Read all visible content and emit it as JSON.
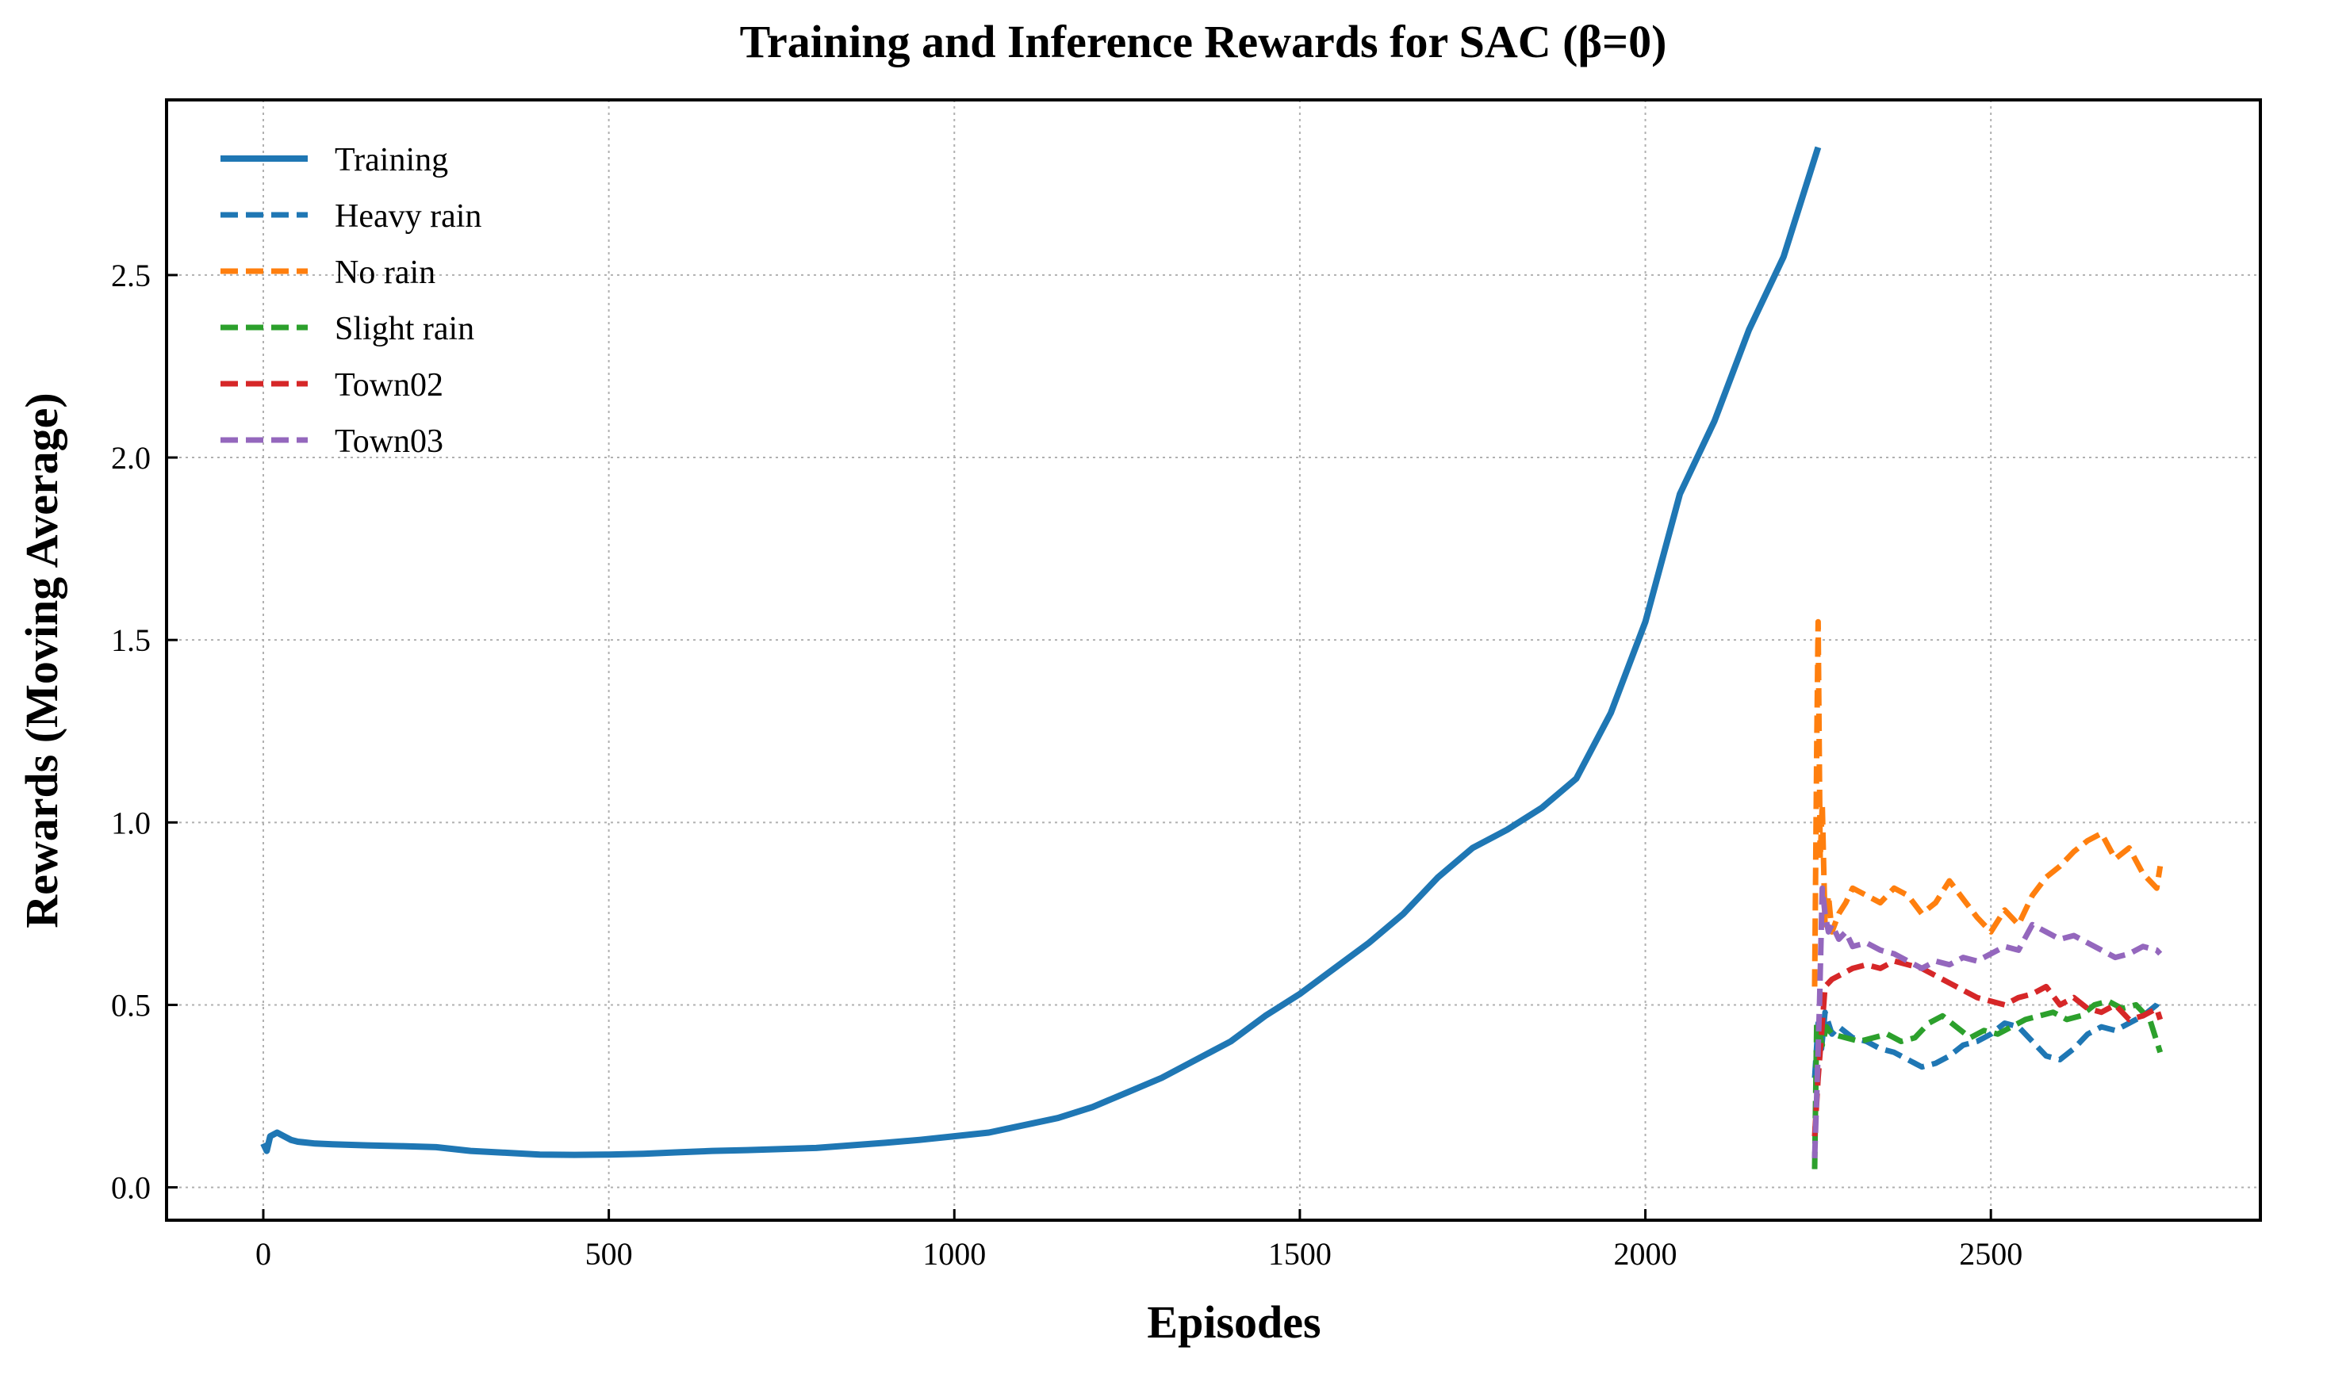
{
  "chart_data": {
    "type": "line",
    "title": "Training and Inference Rewards for SAC (β=0)",
    "xlabel": "Episodes",
    "ylabel": "Rewards (Moving Average)",
    "xlim": [
      -140,
      2890
    ],
    "ylim": [
      -0.09,
      2.98
    ],
    "xticks": [
      0,
      500,
      1000,
      1500,
      2000,
      2500
    ],
    "xtick_labels": [
      "0",
      "500",
      "1000",
      "1500",
      "2000",
      "2500"
    ],
    "yticks": [
      0.0,
      0.5,
      1.0,
      1.5,
      2.0,
      2.5
    ],
    "ytick_labels": [
      "0.0",
      "0.5",
      "1.0",
      "1.5",
      "2.0",
      "2.5"
    ],
    "grid": true,
    "legend_position": "top-left",
    "series": [
      {
        "name": "Training",
        "color": "#1f77b4",
        "dash": "solid",
        "x": [
          0,
          5,
          10,
          20,
          30,
          40,
          50,
          75,
          100,
          150,
          200,
          250,
          300,
          350,
          400,
          450,
          500,
          550,
          600,
          650,
          700,
          750,
          800,
          850,
          900,
          950,
          1000,
          1050,
          1100,
          1150,
          1200,
          1250,
          1300,
          1350,
          1400,
          1450,
          1500,
          1550,
          1600,
          1650,
          1700,
          1750,
          1800,
          1850,
          1900,
          1950,
          2000,
          2050,
          2100,
          2150,
          2200,
          2225,
          2250
        ],
        "y": [
          0.12,
          0.1,
          0.14,
          0.15,
          0.14,
          0.13,
          0.125,
          0.12,
          0.118,
          0.115,
          0.113,
          0.11,
          0.1,
          0.095,
          0.09,
          0.089,
          0.09,
          0.092,
          0.096,
          0.1,
          0.102,
          0.105,
          0.108,
          0.115,
          0.122,
          0.13,
          0.14,
          0.15,
          0.17,
          0.19,
          0.22,
          0.26,
          0.3,
          0.35,
          0.4,
          0.47,
          0.53,
          0.6,
          0.67,
          0.75,
          0.85,
          0.93,
          0.98,
          1.04,
          1.12,
          1.3,
          1.55,
          1.9,
          2.1,
          2.35,
          2.55,
          2.7,
          2.85
        ]
      },
      {
        "name": "Heavy rain",
        "color": "#1f77b4",
        "dash": "dashed",
        "x": [
          2245,
          2250,
          2255,
          2260,
          2270,
          2280,
          2300,
          2320,
          2340,
          2360,
          2380,
          2400,
          2420,
          2440,
          2460,
          2480,
          2500,
          2520,
          2540,
          2560,
          2580,
          2600,
          2620,
          2640,
          2660,
          2680,
          2700,
          2720,
          2740,
          2745
        ],
        "y": [
          0.3,
          0.45,
          0.38,
          0.48,
          0.42,
          0.44,
          0.41,
          0.4,
          0.38,
          0.37,
          0.35,
          0.33,
          0.34,
          0.36,
          0.39,
          0.4,
          0.42,
          0.45,
          0.44,
          0.4,
          0.36,
          0.35,
          0.38,
          0.42,
          0.44,
          0.43,
          0.45,
          0.47,
          0.5,
          0.52
        ]
      },
      {
        "name": "No rain",
        "color": "#ff7f0e",
        "dash": "dashed",
        "x": [
          2245,
          2248,
          2250,
          2253,
          2256,
          2260,
          2265,
          2270,
          2280,
          2290,
          2300,
          2320,
          2340,
          2360,
          2380,
          2400,
          2420,
          2440,
          2460,
          2480,
          2500,
          2520,
          2540,
          2560,
          2580,
          2600,
          2620,
          2640,
          2660,
          2680,
          2700,
          2720,
          2740,
          2745
        ],
        "y": [
          0.55,
          1.2,
          1.55,
          0.9,
          1.05,
          0.72,
          0.8,
          0.7,
          0.75,
          0.78,
          0.82,
          0.8,
          0.78,
          0.82,
          0.8,
          0.75,
          0.78,
          0.84,
          0.79,
          0.74,
          0.7,
          0.76,
          0.72,
          0.8,
          0.85,
          0.88,
          0.92,
          0.95,
          0.97,
          0.9,
          0.93,
          0.86,
          0.82,
          0.88
        ]
      },
      {
        "name": "Slight rain",
        "color": "#2ca02c",
        "dash": "dashed",
        "x": [
          2245,
          2248,
          2252,
          2256,
          2262,
          2270,
          2290,
          2310,
          2330,
          2350,
          2370,
          2390,
          2410,
          2430,
          2450,
          2470,
          2490,
          2510,
          2530,
          2550,
          2570,
          2590,
          2610,
          2630,
          2650,
          2670,
          2690,
          2710,
          2730,
          2745
        ],
        "y": [
          0.05,
          0.45,
          0.42,
          0.39,
          0.44,
          0.42,
          0.41,
          0.4,
          0.41,
          0.42,
          0.4,
          0.41,
          0.45,
          0.47,
          0.44,
          0.41,
          0.43,
          0.42,
          0.44,
          0.46,
          0.47,
          0.48,
          0.46,
          0.47,
          0.5,
          0.51,
          0.49,
          0.5,
          0.46,
          0.37
        ]
      },
      {
        "name": "Town02",
        "color": "#d62728",
        "dash": "dashed",
        "x": [
          2245,
          2250,
          2255,
          2260,
          2270,
          2280,
          2300,
          2320,
          2340,
          2360,
          2380,
          2400,
          2420,
          2440,
          2460,
          2480,
          2500,
          2520,
          2540,
          2560,
          2580,
          2600,
          2620,
          2640,
          2660,
          2680,
          2700,
          2720,
          2740,
          2745
        ],
        "y": [
          0.14,
          0.3,
          0.42,
          0.55,
          0.57,
          0.58,
          0.6,
          0.61,
          0.6,
          0.62,
          0.61,
          0.6,
          0.58,
          0.56,
          0.54,
          0.52,
          0.51,
          0.5,
          0.52,
          0.53,
          0.55,
          0.5,
          0.52,
          0.49,
          0.48,
          0.5,
          0.46,
          0.47,
          0.49,
          0.46
        ]
      },
      {
        "name": "Town03",
        "color": "#9467bd",
        "dash": "dashed",
        "x": [
          2245,
          2248,
          2252,
          2256,
          2260,
          2265,
          2270,
          2280,
          2290,
          2300,
          2320,
          2340,
          2360,
          2380,
          2400,
          2420,
          2440,
          2460,
          2480,
          2500,
          2520,
          2540,
          2560,
          2580,
          2600,
          2620,
          2640,
          2660,
          2680,
          2700,
          2720,
          2740,
          2745
        ],
        "y": [
          0.08,
          0.25,
          0.5,
          0.82,
          0.75,
          0.7,
          0.72,
          0.68,
          0.7,
          0.66,
          0.67,
          0.65,
          0.64,
          0.62,
          0.6,
          0.62,
          0.61,
          0.63,
          0.62,
          0.64,
          0.66,
          0.65,
          0.72,
          0.7,
          0.68,
          0.69,
          0.67,
          0.65,
          0.63,
          0.64,
          0.66,
          0.65,
          0.64
        ]
      }
    ]
  }
}
